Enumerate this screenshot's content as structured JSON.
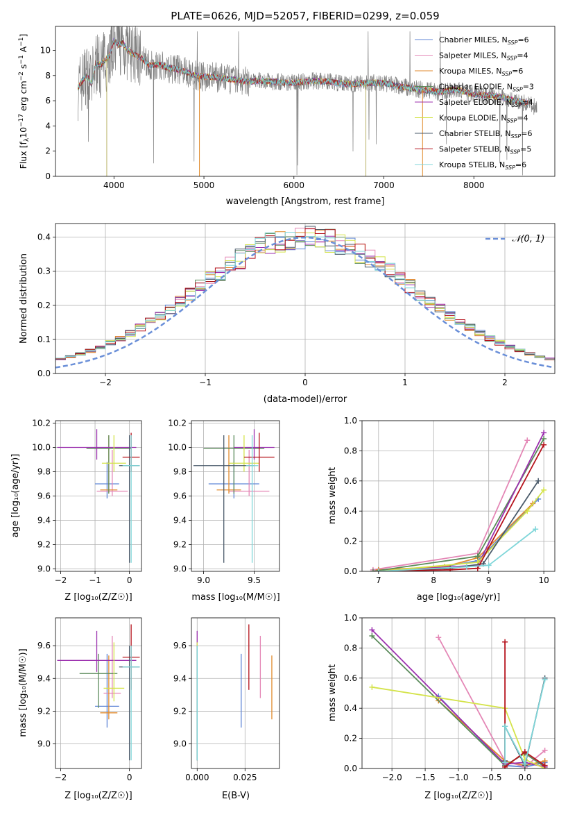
{
  "figure": {
    "title": "PLATE=0626, MJD=52057, FIBERID=0299, z=0.059"
  },
  "series_styles": [
    {
      "name": "Chabrier MILES, N_SSP=6",
      "label_main": "Chabrier MILES, N",
      "label_sub": "SSP",
      "label_tail": "=6",
      "color": "#5f86d6"
    },
    {
      "name": "Salpeter MILES, N_SSP=4",
      "label_main": "Salpeter MILES, N",
      "label_sub": "SSP",
      "label_tail": "=4",
      "color": "#e487b6"
    },
    {
      "name": "Kroupa MILES, N_SSP=6",
      "label_main": "Kroupa MILES, N",
      "label_sub": "SSP",
      "label_tail": "=6",
      "color": "#e08a2c"
    },
    {
      "name": "Chabrier ELODIE, N_SSP=3",
      "label_main": "Chabrier ELODIE, N",
      "label_sub": "SSP",
      "label_tail": "=3",
      "color": "#5a8a5a"
    },
    {
      "name": "Salpeter ELODIE, N_SSP=4",
      "label_main": "Salpeter ELODIE, N",
      "label_sub": "SSP",
      "label_tail": "=4",
      "color": "#9b2fae"
    },
    {
      "name": "Kroupa ELODIE, N_SSP=4",
      "label_main": "Kroupa ELODIE, N",
      "label_sub": "SSP",
      "label_tail": "=4",
      "color": "#d4e34a"
    },
    {
      "name": "Chabrier STELIB, N_SSP=6",
      "label_main": "Chabrier STELIB, N",
      "label_sub": "SSP",
      "label_tail": "=6",
      "color": "#4a5a6a"
    },
    {
      "name": "Salpeter STELIB, N_SSP=5",
      "label_main": "Salpeter STELIB, N",
      "label_sub": "SSP",
      "label_tail": "=5",
      "color": "#b5121b"
    },
    {
      "name": "Kroupa STELIB, N_SSP=6",
      "label_main": "Kroupa STELIB, N",
      "label_sub": "SSP",
      "label_tail": "=6",
      "color": "#7fd6d9"
    }
  ],
  "chart_data": [
    {
      "id": "spectrum",
      "type": "line",
      "xlabel": "wavelength [Angstrom, rest frame]",
      "ylabel_main": "Flux [f",
      "ylabel_sub": "λ",
      "ylabel_mid": "10",
      "ylabel_exp1": "−17",
      "ylabel_tail": " erg cm",
      "ylabel_exp2": "−2",
      "ylabel_tail2": " s",
      "ylabel_exp3": "−1",
      "ylabel_tail3": " A",
      "ylabel_exp4": "−1",
      "ylabel_end": "]",
      "xlim": [
        3350,
        8900
      ],
      "ylim": [
        0,
        11.9
      ],
      "xticks": [
        4000,
        5000,
        6000,
        7000,
        8000
      ],
      "yticks": [
        0,
        2,
        4,
        6,
        8,
        10
      ],
      "data_color": "#808080",
      "continuum": {
        "x": [
          3600,
          3650,
          3700,
          3750,
          3800,
          3850,
          3900,
          3950,
          4000,
          4050,
          4100,
          4150,
          4200,
          4300,
          4400,
          4500,
          4600,
          4700,
          4800,
          4900,
          5000,
          5100,
          5200,
          5300,
          5400,
          5500,
          5600,
          5800,
          6000,
          6200,
          6400,
          6600,
          6800,
          7000,
          7200,
          7400,
          7600,
          7800,
          8000,
          8200,
          8400,
          8600,
          8700
        ],
        "y": [
          7.0,
          7.6,
          8.0,
          7.3,
          9.0,
          8.8,
          9.2,
          9.6,
          10.8,
          10.4,
          10.6,
          10.0,
          9.8,
          9.4,
          8.8,
          8.9,
          8.6,
          8.5,
          8.3,
          8.0,
          7.9,
          7.9,
          7.8,
          7.7,
          7.6,
          7.5,
          7.6,
          7.5,
          7.4,
          7.6,
          7.5,
          7.3,
          7.4,
          7.4,
          7.1,
          6.9,
          6.7,
          6.9,
          6.5,
          6.4,
          6.1,
          5.8,
          5.4
        ]
      },
      "legend_position": "upper right"
    },
    {
      "id": "residual-histogram",
      "type": "histogram",
      "xlabel": "(data-model)/error",
      "ylabel": "Normed distribution",
      "xlim": [
        -2.5,
        2.5
      ],
      "ylim": [
        0,
        0.44
      ],
      "xticks": [
        -2,
        -1,
        0,
        1,
        2
      ],
      "yticks": [
        0.0,
        0.1,
        0.2,
        0.3,
        0.4
      ],
      "bin_width": 0.1,
      "reference_curve": {
        "name": "N(0,1)",
        "label_script": "𝒩(0, 1)",
        "mean": 0,
        "sigma": 1,
        "color": "#6a8fd8"
      },
      "legend_position": "upper right"
    },
    {
      "id": "age-vs-z",
      "type": "errorbar",
      "xlabel": "Z [log₁₀(Z/Z☉)]",
      "ylabel": "age  [log₁₀(age/yr)]",
      "xlim": [
        -2.15,
        0.35
      ],
      "ylim": [
        8.98,
        10.22
      ],
      "xticks": [
        -2,
        -1,
        0
      ],
      "yticks": [
        9.0,
        9.2,
        9.4,
        9.6,
        9.8,
        10.0,
        10.2
      ],
      "points": [
        {
          "x": -0.65,
          "xerr": 0.35,
          "y": 9.7,
          "ylo": 9.58,
          "yhi": 9.88
        },
        {
          "x": -0.5,
          "xerr": 0.45,
          "y": 9.64,
          "ylo": 9.6,
          "yhi": 9.98
        },
        {
          "x": -0.6,
          "xerr": 0.25,
          "y": 9.65,
          "ylo": 9.62,
          "yhi": 10.1
        },
        {
          "x": -0.6,
          "xerr": 0.65,
          "y": 9.99,
          "ylo": 9.62,
          "yhi": 10.1
        },
        {
          "x": -0.95,
          "xerr": 1.15,
          "y": 10.0,
          "ylo": 9.9,
          "yhi": 10.15
        },
        {
          "x": -0.45,
          "xerr": 0.35,
          "y": 9.87,
          "ylo": 9.8,
          "yhi": 10.1
        },
        {
          "x": 0.0,
          "xerr": 0.3,
          "y": 9.85,
          "ylo": 9.05,
          "yhi": 10.1
        },
        {
          "x": 0.05,
          "xerr": 0.25,
          "y": 9.92,
          "ylo": 9.8,
          "yhi": 10.12
        },
        {
          "x": 0.05,
          "xerr": 0.25,
          "y": 9.85,
          "ylo": 9.05,
          "yhi": 10.1
        }
      ]
    },
    {
      "id": "age-vs-mass",
      "type": "errorbar",
      "xlabel": "mass [log₁₀(M/M☉)]",
      "xlim": [
        8.88,
        9.75
      ],
      "ylim": [
        8.98,
        10.22
      ],
      "xticks": [
        9.0,
        9.5
      ],
      "yticks": [
        9.0,
        9.2,
        9.4,
        9.6,
        9.8,
        10.0,
        10.2
      ],
      "points": [
        {
          "x": 9.3,
          "xerr": 0.25,
          "y": 9.7,
          "ylo": 9.58,
          "yhi": 9.88
        },
        {
          "x": 9.45,
          "xerr": 0.2,
          "y": 9.64,
          "ylo": 9.6,
          "yhi": 9.98
        },
        {
          "x": 9.25,
          "xerr": 0.12,
          "y": 9.65,
          "ylo": 9.62,
          "yhi": 10.1
        },
        {
          "x": 9.3,
          "xerr": 0.3,
          "y": 9.99,
          "ylo": 9.62,
          "yhi": 10.1
        },
        {
          "x": 9.5,
          "xerr": 0.2,
          "y": 10.0,
          "ylo": 9.9,
          "yhi": 10.15
        },
        {
          "x": 9.4,
          "xerr": 0.15,
          "y": 9.87,
          "ylo": 9.8,
          "yhi": 10.1
        },
        {
          "x": 9.2,
          "xerr": 0.3,
          "y": 9.85,
          "ylo": 9.05,
          "yhi": 10.1
        },
        {
          "x": 9.55,
          "xerr": 0.15,
          "y": 9.92,
          "ylo": 9.8,
          "yhi": 10.12
        },
        {
          "x": 9.48,
          "xerr": 0.06,
          "y": 9.85,
          "ylo": 9.05,
          "yhi": 10.1
        }
      ]
    },
    {
      "id": "mass-weight-vs-age",
      "type": "line",
      "xlabel": "age  [log₁₀(age/yr)]",
      "ylabel": "mass weight",
      "xlim": [
        6.7,
        10.2
      ],
      "ylim": [
        0,
        1.0
      ],
      "xticks": [
        7,
        8,
        9,
        10
      ],
      "yticks": [
        0.0,
        0.2,
        0.4,
        0.6,
        0.8,
        1.0
      ],
      "series": [
        {
          "x": [
            7.0,
            8.0,
            8.8,
            9.9
          ],
          "y": [
            0.01,
            0.02,
            0.07,
            0.48
          ]
        },
        {
          "x": [
            6.9,
            8.8,
            9.7
          ],
          "y": [
            0.01,
            0.12,
            0.87
          ]
        },
        {
          "x": [
            7.0,
            8.2,
            8.8,
            9.8
          ],
          "y": [
            0.01,
            0.03,
            0.09,
            0.45
          ]
        },
        {
          "x": [
            6.9,
            8.8,
            10.0
          ],
          "y": [
            0.0,
            0.1,
            0.88
          ]
        },
        {
          "x": [
            7.0,
            8.8,
            10.0
          ],
          "y": [
            0.0,
            0.04,
            0.92
          ]
        },
        {
          "x": [
            7.0,
            8.8,
            9.7,
            10.0
          ],
          "y": [
            0.0,
            0.06,
            0.4,
            0.54
          ]
        },
        {
          "x": [
            7.0,
            8.3,
            8.9,
            9.9
          ],
          "y": [
            0.0,
            0.02,
            0.05,
            0.6
          ]
        },
        {
          "x": [
            7.0,
            8.3,
            8.8,
            10.0
          ],
          "y": [
            0.0,
            0.01,
            0.02,
            0.84
          ]
        },
        {
          "x": [
            7.0,
            8.6,
            9.0,
            9.85
          ],
          "y": [
            0.0,
            0.03,
            0.04,
            0.28
          ]
        }
      ]
    },
    {
      "id": "mass-vs-z",
      "type": "errorbar",
      "xlabel": "Z [log₁₀(Z/Z☉)]",
      "ylabel": "mass [log₁₀(M/M☉)]",
      "xlim": [
        -2.15,
        0.35
      ],
      "ylim": [
        8.85,
        9.77
      ],
      "xticks": [
        -2,
        0
      ],
      "yticks": [
        9.0,
        9.2,
        9.4,
        9.6
      ],
      "points": [
        {
          "x": -0.65,
          "xerr": 0.35,
          "y": 9.23,
          "ylo": 9.1,
          "yhi": 9.55
        },
        {
          "x": -0.5,
          "xerr": 0.25,
          "y": 9.31,
          "ylo": 9.28,
          "yhi": 9.66
        },
        {
          "x": -0.6,
          "xerr": 0.25,
          "y": 9.19,
          "ylo": 9.15,
          "yhi": 9.54
        },
        {
          "x": -0.9,
          "xerr": 0.55,
          "y": 9.43,
          "ylo": 9.22,
          "yhi": 9.55
        },
        {
          "x": -0.95,
          "xerr": 1.15,
          "y": 9.51,
          "ylo": 9.44,
          "yhi": 9.69
        },
        {
          "x": -0.45,
          "xerr": 0.3,
          "y": 9.34,
          "ylo": 9.26,
          "yhi": 9.62
        },
        {
          "x": 0.0,
          "xerr": 0.3,
          "y": 9.47,
          "ylo": 8.9,
          "yhi": 9.6
        },
        {
          "x": 0.05,
          "xerr": 0.25,
          "y": 9.53,
          "ylo": 9.33,
          "yhi": 9.73
        },
        {
          "x": 0.05,
          "xerr": 0.25,
          "y": 9.47,
          "ylo": 8.9,
          "yhi": 9.6
        }
      ]
    },
    {
      "id": "mass-vs-ebv",
      "type": "errorbar",
      "xlabel": "E(B-V)",
      "xlim": [
        -0.003,
        0.043
      ],
      "ylim": [
        8.85,
        9.77
      ],
      "xticks": [
        0.0,
        0.025
      ],
      "xtick_labels": [
        "0.000",
        "0.025"
      ],
      "yticks": [
        9.0,
        9.2,
        9.4,
        9.6
      ],
      "points": [
        {
          "x": 0.023,
          "y": 9.32,
          "ylo": 9.1,
          "yhi": 9.55
        },
        {
          "x": 0.033,
          "y": 9.47,
          "ylo": 9.28,
          "yhi": 9.66
        },
        {
          "x": 0.039,
          "y": 9.35,
          "ylo": 9.15,
          "yhi": 9.54
        },
        {
          "x": 0.0,
          "y": 9.3,
          "ylo": 8.9,
          "yhi": 9.6
        },
        {
          "x": 0.0,
          "y": 9.51,
          "ylo": 9.44,
          "yhi": 9.69
        },
        {
          "x": 0.0,
          "y": 9.45,
          "ylo": 9.26,
          "yhi": 9.62
        },
        {
          "x": 0.0,
          "y": 9.3,
          "ylo": 8.9,
          "yhi": 9.6
        },
        {
          "x": 0.027,
          "y": 9.53,
          "ylo": 9.33,
          "yhi": 9.73
        },
        {
          "x": 0.0,
          "y": 9.3,
          "ylo": 8.9,
          "yhi": 9.6
        }
      ]
    },
    {
      "id": "mass-weight-vs-z",
      "type": "line",
      "xlabel": "Z [log₁₀(Z/Z☉)]",
      "ylabel": "mass weight",
      "xlim": [
        -2.45,
        0.45
      ],
      "ylim": [
        0,
        1.0
      ],
      "xticks": [
        -2.0,
        -1.5,
        -1.0,
        -0.5,
        0.0
      ],
      "yticks": [
        0.0,
        0.2,
        0.4,
        0.6,
        0.8,
        1.0
      ],
      "series": [
        {
          "x": [
            -1.3,
            -0.3,
            0.0,
            0.3
          ],
          "y": [
            0.48,
            0.02,
            0.01,
            0.04
          ]
        },
        {
          "x": [
            -1.3,
            -0.3,
            0.0,
            0.3
          ],
          "y": [
            0.87,
            0.05,
            0.01,
            0.12
          ]
        },
        {
          "x": [
            -1.3,
            -0.3,
            0.0,
            0.3
          ],
          "y": [
            0.45,
            0.05,
            0.02,
            0.05
          ]
        },
        {
          "x": [
            -2.3,
            -0.3,
            0.0,
            0.3
          ],
          "y": [
            0.88,
            0.02,
            0.1,
            0.01
          ]
        },
        {
          "x": [
            -2.3,
            -0.3,
            0.0,
            0.3
          ],
          "y": [
            0.92,
            0.03,
            0.04,
            0.01
          ]
        },
        {
          "x": [
            -2.3,
            -0.3,
            0.0,
            0.3
          ],
          "y": [
            0.54,
            0.4,
            0.06,
            0.0
          ]
        },
        {
          "x": [
            -0.3,
            -0.3,
            0.0,
            0.3
          ],
          "y": [
            0.05,
            0.28,
            0.02,
            0.6
          ]
        },
        {
          "x": [
            -0.3,
            -0.3,
            0.0,
            0.3
          ],
          "y": [
            0.84,
            0.01,
            0.11,
            0.02
          ]
        },
        {
          "x": [
            -0.3,
            -0.3,
            0.0,
            0.3
          ],
          "y": [
            0.04,
            0.28,
            0.03,
            0.59
          ]
        }
      ]
    }
  ]
}
